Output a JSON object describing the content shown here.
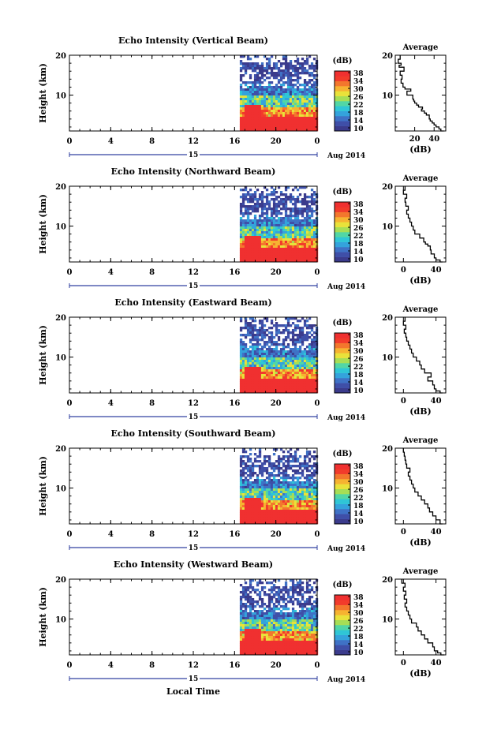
{
  "colors": {
    "colorbar": [
      "#3b3b8c",
      "#3f4fa8",
      "#3f72c6",
      "#34a3dc",
      "#2fc6d6",
      "#52d6a5",
      "#a7de55",
      "#e9e23a",
      "#f6b331",
      "#f3772d",
      "#f23b2b",
      "#f03030"
    ],
    "white": "#ffffff",
    "axis": "#000000",
    "timebar": "#3040a0"
  },
  "common": {
    "date_label": "Aug 2014",
    "day_label": "15",
    "xlabel_bottom": "Local Time",
    "ylabel": "Height (km)",
    "cb_unit": "(dB)",
    "avg_title": "Average",
    "avg_xlabel": "(dB)"
  },
  "chart_data": [
    {
      "type": "heatmap",
      "title": "Echo Intensity (Vertical Beam)",
      "x_ticks": [
        "0",
        "4",
        "8",
        "12",
        "16",
        "20",
        "0"
      ],
      "y_ticks": [
        "20",
        "10"
      ],
      "xlim": [
        0,
        24
      ],
      "ylim": [
        1,
        20
      ],
      "data_start_hour": 16.5,
      "colorbar": {
        "label": "(dB)",
        "ticks": [
          "38",
          "34",
          "30",
          "26",
          "22",
          "18",
          "14",
          "10"
        ],
        "range": [
          10,
          38
        ]
      },
      "average_profile": {
        "title": "Average",
        "xlabel": "(dB)",
        "x_ticks": [
          "20",
          "40"
        ],
        "y_ticks": [
          "20",
          "10"
        ],
        "xlim": [
          0,
          52
        ],
        "height": [
          1,
          1.5,
          2,
          2.5,
          3,
          3.5,
          4,
          5,
          5.5,
          6,
          6.5,
          7,
          7.5,
          8,
          8.5,
          9,
          10,
          11,
          11.5,
          12,
          13,
          14,
          15,
          16,
          17,
          17.5,
          18,
          19,
          20
        ],
        "db": [
          50,
          47,
          45,
          42,
          40,
          38,
          36,
          35,
          32,
          30,
          27,
          28,
          24,
          22,
          20,
          19,
          18,
          12,
          16,
          10,
          8,
          6,
          7,
          5,
          9,
          4,
          6,
          3,
          5
        ]
      }
    },
    {
      "type": "heatmap",
      "title": "Echo Intensity (Northward Beam)",
      "x_ticks": [
        "0",
        "4",
        "8",
        "12",
        "16",
        "20",
        "0"
      ],
      "y_ticks": [
        "20",
        "10"
      ],
      "xlim": [
        0,
        24
      ],
      "ylim": [
        1,
        20
      ],
      "data_start_hour": 16.5,
      "colorbar": {
        "label": "(dB)",
        "ticks": [
          "38",
          "34",
          "30",
          "26",
          "22",
          "18",
          "14",
          "10"
        ],
        "range": [
          10,
          38
        ]
      },
      "average_profile": {
        "title": "Average",
        "xlabel": "(dB)",
        "x_ticks": [
          "0",
          "40"
        ],
        "y_ticks": [
          "20",
          "10"
        ],
        "xlim": [
          -10,
          52
        ],
        "height": [
          1,
          1.5,
          2,
          3,
          4,
          5,
          5.5,
          6,
          7,
          8,
          9,
          10,
          11,
          12,
          13,
          14,
          15,
          16,
          17,
          18,
          19,
          20
        ],
        "db": [
          48,
          45,
          40,
          38,
          34,
          33,
          30,
          27,
          25,
          20,
          14,
          12,
          10,
          8,
          6,
          4,
          6,
          3,
          2,
          4,
          0,
          2
        ]
      }
    },
    {
      "type": "heatmap",
      "title": "Echo Intensity (Eastward Beam)",
      "x_ticks": [
        "0",
        "4",
        "8",
        "12",
        "16",
        "20",
        "0"
      ],
      "y_ticks": [
        "20",
        "10"
      ],
      "xlim": [
        0,
        24
      ],
      "ylim": [
        1,
        20
      ],
      "data_start_hour": 16.5,
      "colorbar": {
        "label": "(dB)",
        "ticks": [
          "38",
          "34",
          "30",
          "26",
          "22",
          "18",
          "14",
          "10"
        ],
        "range": [
          10,
          38
        ]
      },
      "average_profile": {
        "title": "Average",
        "xlabel": "(dB)",
        "x_ticks": [
          "0",
          "40"
        ],
        "y_ticks": [
          "20",
          "10"
        ],
        "xlim": [
          -10,
          52
        ],
        "height": [
          1,
          1.5,
          2,
          3,
          4,
          5,
          6,
          7,
          8,
          9,
          10,
          11,
          12,
          13,
          14,
          15,
          16,
          17,
          18,
          19,
          20
        ],
        "db": [
          48,
          45,
          40,
          38,
          36,
          30,
          34,
          26,
          22,
          20,
          16,
          12,
          10,
          8,
          6,
          4,
          3,
          1,
          3,
          0,
          2
        ]
      }
    },
    {
      "type": "heatmap",
      "title": "Echo Intensity (Southward Beam)",
      "x_ticks": [
        "0",
        "4",
        "8",
        "12",
        "16",
        "20",
        "0"
      ],
      "y_ticks": [
        "20",
        "10"
      ],
      "xlim": [
        0,
        24
      ],
      "ylim": [
        1,
        20
      ],
      "data_start_hour": 16.5,
      "colorbar": {
        "label": "(dB)",
        "ticks": [
          "38",
          "34",
          "30",
          "26",
          "22",
          "18",
          "14",
          "10"
        ],
        "range": [
          10,
          38
        ]
      },
      "average_profile": {
        "title": "Average",
        "xlabel": "(dB)",
        "x_ticks": [
          "0",
          "40"
        ],
        "y_ticks": [
          "20",
          "10"
        ],
        "xlim": [
          -10,
          52
        ],
        "height": [
          1,
          2,
          3,
          4,
          5,
          6,
          7,
          8,
          9,
          10,
          11,
          12,
          13,
          14,
          15,
          16,
          17,
          18,
          19,
          20
        ],
        "db": [
          48,
          45,
          40,
          36,
          32,
          30,
          26,
          22,
          18,
          14,
          12,
          10,
          8,
          6,
          8,
          4,
          3,
          2,
          1,
          0
        ]
      }
    },
    {
      "type": "heatmap",
      "title": "Echo Intensity (Westward Beam)",
      "x_ticks": [
        "0",
        "4",
        "8",
        "12",
        "16",
        "20",
        "0"
      ],
      "y_ticks": [
        "20",
        "10"
      ],
      "xlim": [
        0,
        24
      ],
      "ylim": [
        1,
        20
      ],
      "data_start_hour": 16.5,
      "colorbar": {
        "label": "(dB)",
        "ticks": [
          "38",
          "34",
          "30",
          "26",
          "22",
          "18",
          "14",
          "10"
        ],
        "range": [
          10,
          38
        ]
      },
      "average_profile": {
        "title": "Average",
        "xlabel": "(dB)",
        "x_ticks": [
          "0",
          "40"
        ],
        "y_ticks": [
          "20",
          "10"
        ],
        "xlim": [
          -10,
          52
        ],
        "height": [
          1,
          1.5,
          2,
          3,
          4,
          5,
          6,
          7,
          8,
          9,
          10,
          11,
          12,
          13,
          14,
          15,
          16,
          17,
          18,
          19,
          20
        ],
        "db": [
          50,
          46,
          42,
          38,
          36,
          30,
          26,
          22,
          18,
          16,
          10,
          8,
          6,
          4,
          2,
          4,
          1,
          3,
          0,
          2,
          -2
        ]
      }
    }
  ]
}
